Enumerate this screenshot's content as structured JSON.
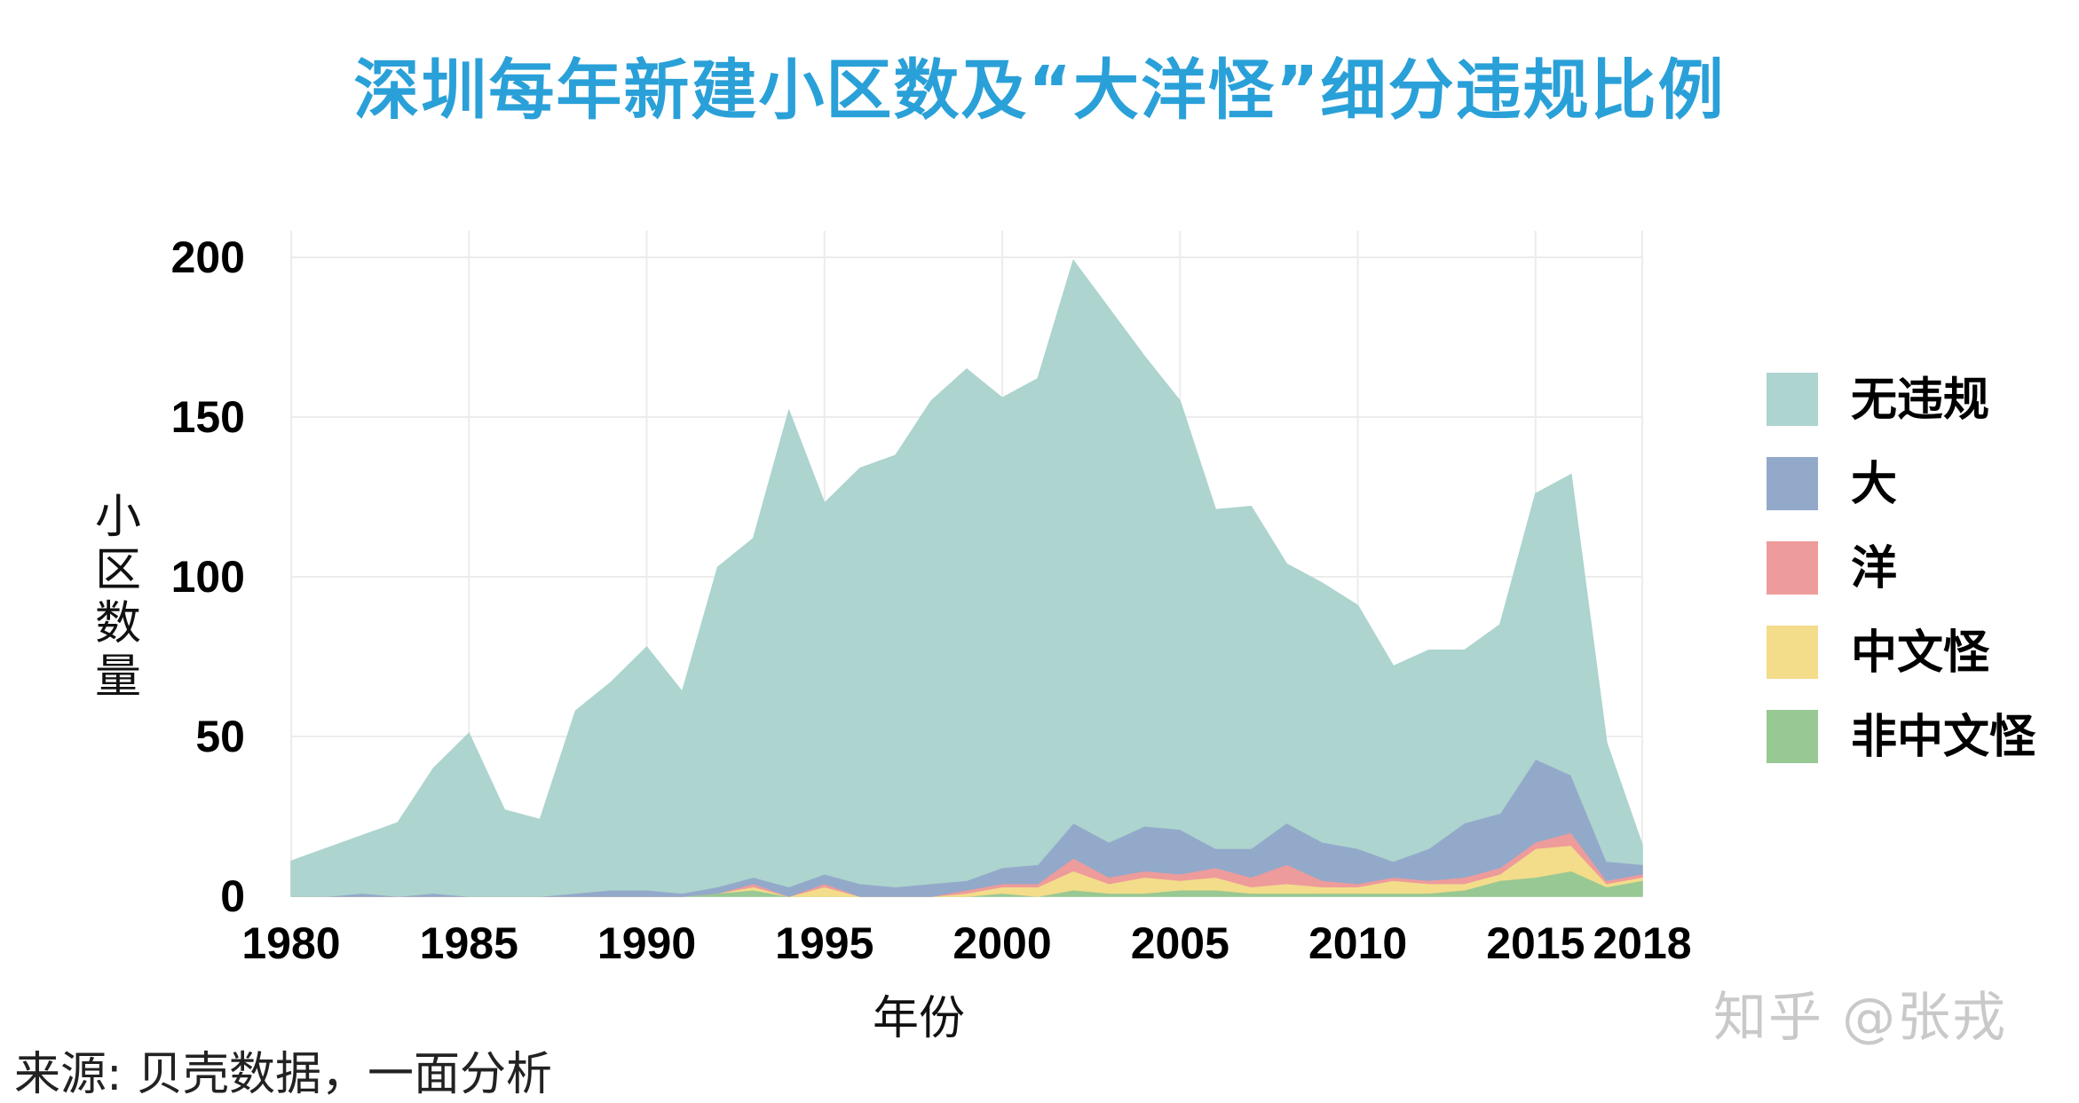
{
  "title": "深圳每年新建小区数及“大洋怪”细分违规比例",
  "source_note": "来源: 贝壳数据，一面分析",
  "watermark": "知乎 @张戎",
  "chart_data": {
    "type": "area",
    "stacked": true,
    "xlabel": "年份",
    "ylabel": "小区数量",
    "ylim": [
      0,
      200
    ],
    "xlim": [
      1980,
      2018
    ],
    "yticks": [
      0,
      50,
      100,
      150,
      200
    ],
    "xticks": [
      1980,
      1985,
      1990,
      1995,
      2000,
      2005,
      2010,
      2015,
      2018
    ],
    "grid": true,
    "legend_position": "right",
    "x": [
      1980,
      1981,
      1982,
      1983,
      1984,
      1985,
      1986,
      1987,
      1988,
      1989,
      1990,
      1991,
      1992,
      1993,
      1994,
      1995,
      1996,
      1997,
      1998,
      1999,
      2000,
      2001,
      2002,
      2003,
      2004,
      2005,
      2006,
      2007,
      2008,
      2009,
      2010,
      2011,
      2012,
      2013,
      2014,
      2015,
      2016,
      2017,
      2018
    ],
    "series": [
      {
        "name": "非中文怪",
        "color": "#98c893",
        "values": [
          0,
          0,
          0,
          0,
          0,
          0,
          0,
          0,
          0,
          0,
          0,
          0,
          1,
          2,
          0,
          0,
          0,
          0,
          0,
          0,
          1,
          0,
          2,
          1,
          1,
          2,
          2,
          1,
          1,
          1,
          1,
          1,
          1,
          2,
          5,
          6,
          8,
          3,
          5
        ]
      },
      {
        "name": "中文怪",
        "color": "#f3dc8a",
        "values": [
          0,
          0,
          0,
          0,
          0,
          0,
          0,
          0,
          0,
          0,
          0,
          0,
          0,
          1,
          0,
          3,
          0,
          0,
          0,
          1,
          2,
          3,
          6,
          3,
          5,
          3,
          4,
          2,
          3,
          2,
          2,
          4,
          3,
          2,
          2,
          9,
          8,
          1,
          1
        ]
      },
      {
        "name": "洋",
        "color": "#ee9b9b",
        "values": [
          0,
          0,
          0,
          0,
          0,
          0,
          0,
          0,
          0,
          0,
          0,
          0,
          0,
          1,
          0,
          1,
          0,
          0,
          0,
          1,
          1,
          1,
          4,
          2,
          2,
          2,
          3,
          3,
          6,
          2,
          1,
          1,
          1,
          2,
          2,
          2,
          4,
          1,
          1
        ]
      },
      {
        "name": "大",
        "color": "#93a9ca",
        "values": [
          0,
          0,
          1,
          0,
          1,
          0,
          0,
          0,
          1,
          2,
          2,
          1,
          2,
          2,
          3,
          3,
          4,
          3,
          4,
          3,
          5,
          6,
          11,
          11,
          14,
          14,
          6,
          9,
          13,
          12,
          11,
          5,
          10,
          17,
          17,
          26,
          18,
          6,
          3
        ]
      },
      {
        "name": "无违规",
        "color": "#add4ce",
        "values": [
          11,
          15,
          18,
          23,
          39,
          51,
          27,
          24,
          57,
          65,
          76,
          63,
          100,
          106,
          149,
          116,
          130,
          135,
          151,
          160,
          147,
          152,
          176,
          167,
          147,
          134,
          106,
          107,
          81,
          81,
          76,
          61,
          62,
          54,
          59,
          83,
          94,
          37,
          6
        ]
      }
    ]
  }
}
